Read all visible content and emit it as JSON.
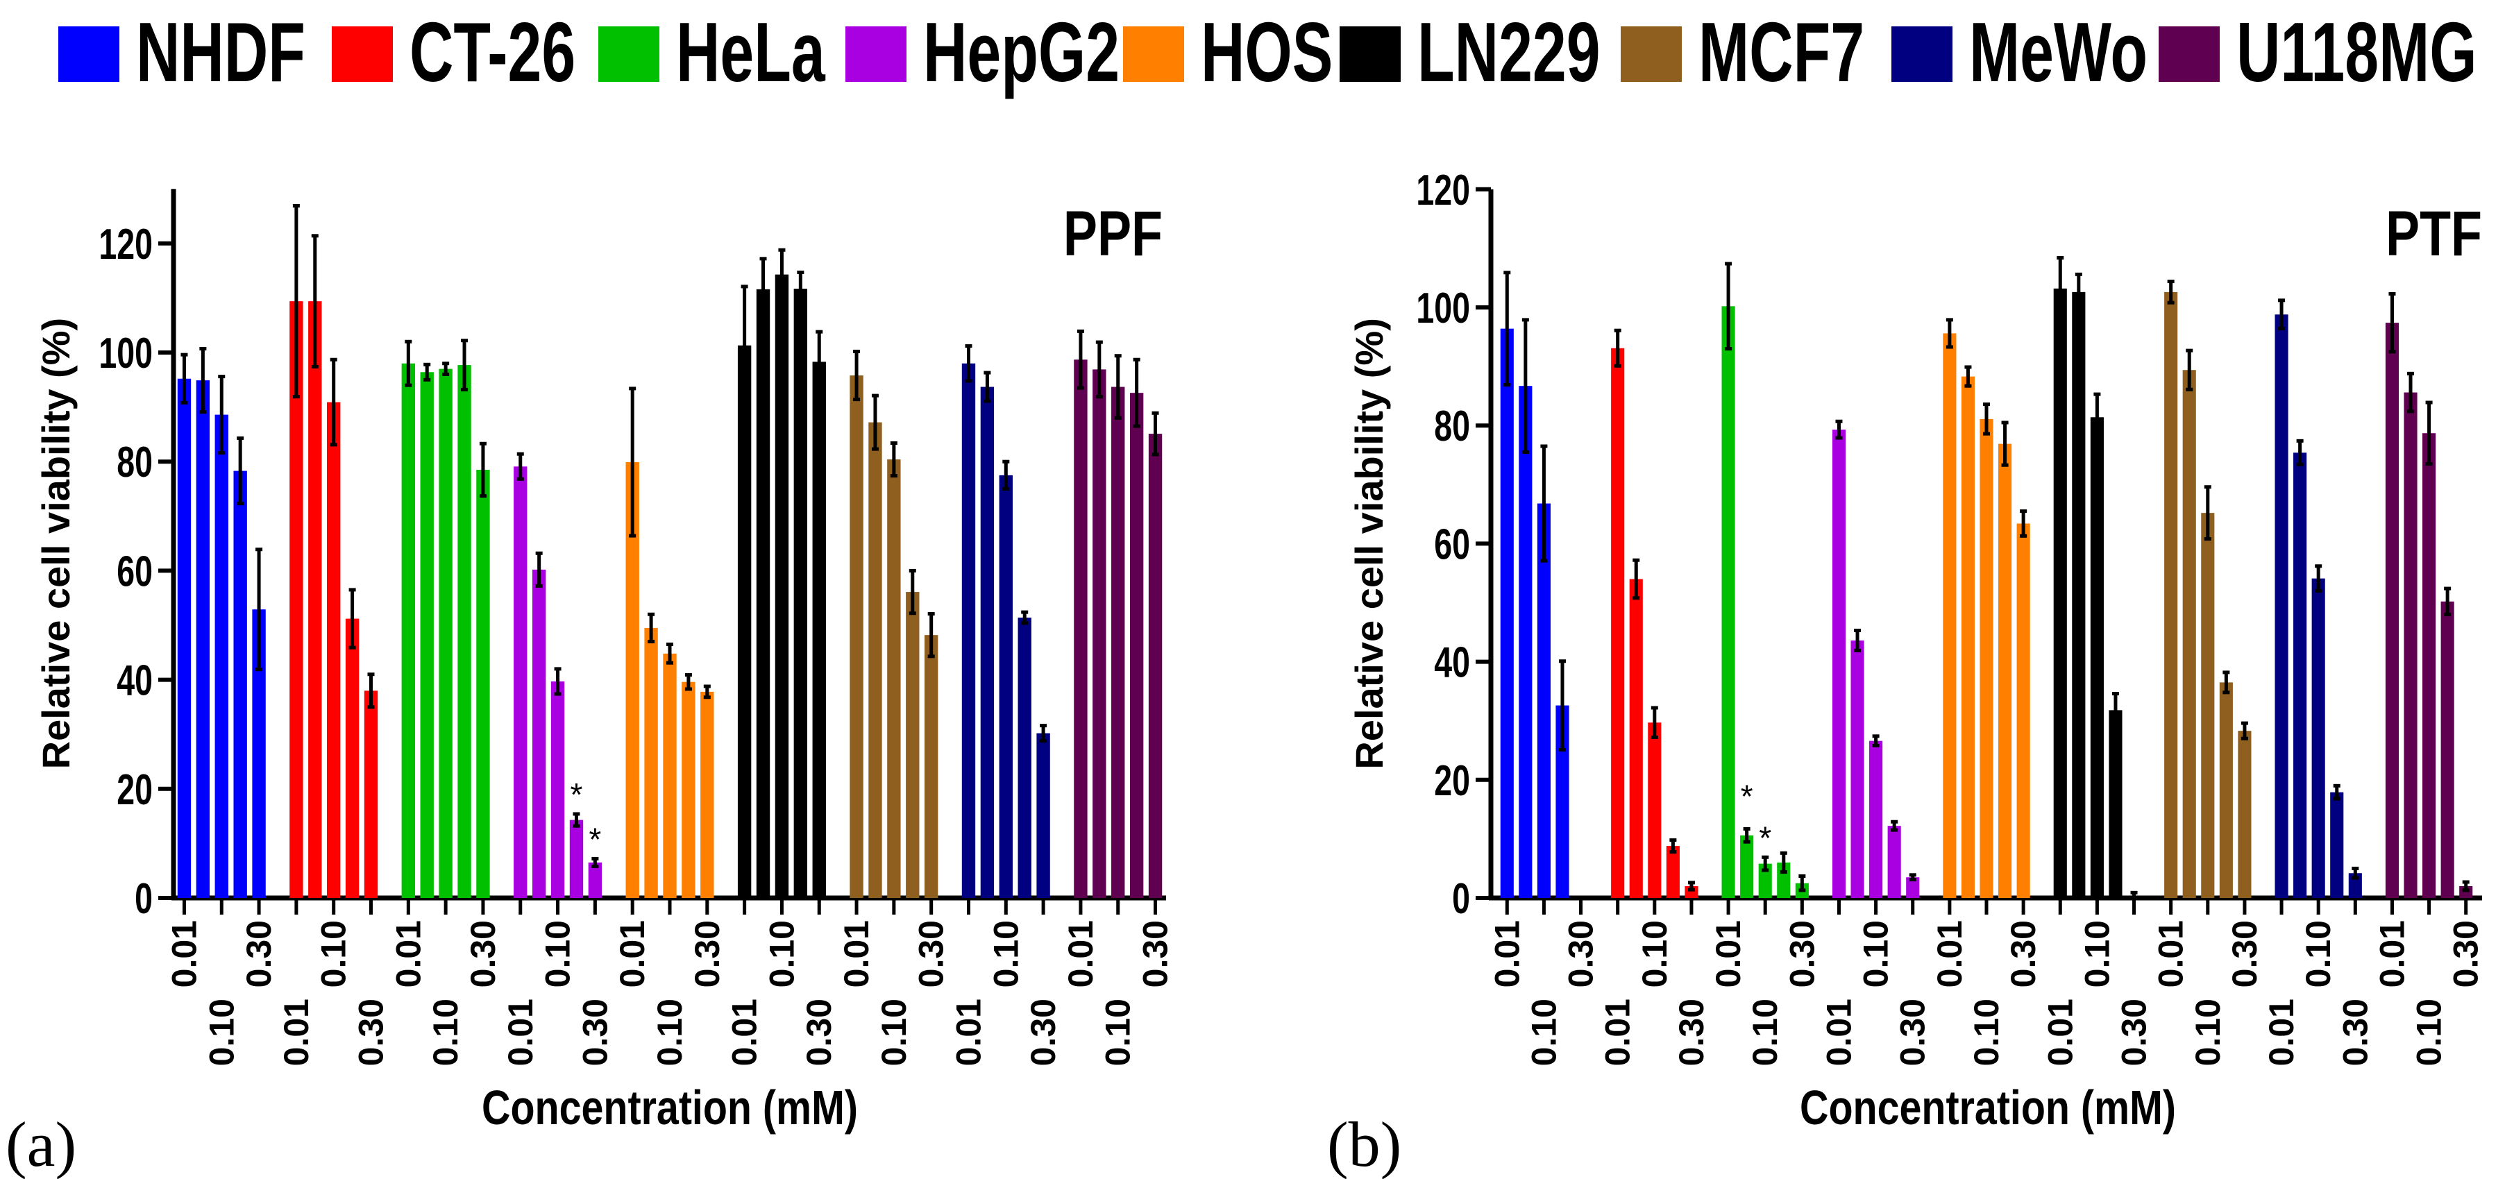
{
  "legend": [
    {
      "name": "NHDF",
      "color": "#0000ff"
    },
    {
      "name": "CT-26",
      "color": "#ff0000"
    },
    {
      "name": "HeLa",
      "color": "#00c000"
    },
    {
      "name": "HepG2",
      "color": "#a800e0"
    },
    {
      "name": "HOS",
      "color": "#ff8000"
    },
    {
      "name": "LN229",
      "color": "#000000"
    },
    {
      "name": "MCF7",
      "color": "#8f5f1f"
    },
    {
      "name": "MeWo",
      "color": "#000080"
    },
    {
      "name": "U118MG",
      "color": "#600050"
    }
  ],
  "panels": [
    {
      "label": "(a)"
    },
    {
      "label": "(b)"
    }
  ],
  "chart_data": [
    {
      "type": "bar",
      "title": "PPF",
      "xlabel": "Concentration (mM)",
      "ylabel": "Relative cell viability (%)",
      "ylim": [
        0,
        130
      ],
      "yticks": [
        0,
        20,
        40,
        60,
        80,
        100,
        120
      ],
      "bar_tick_labels": [
        "0.01",
        "",
        "0.10",
        "",
        "0.30"
      ],
      "asterisk_mark": "*",
      "series": [
        {
          "name": "NHDF",
          "values": [
            95.2,
            94.9,
            88.6,
            78.3,
            52.9
          ],
          "errors": [
            4.4,
            5.8,
            7.0,
            6.0,
            11.0
          ],
          "asterisks": []
        },
        {
          "name": "CT-26",
          "values": [
            109.4,
            109.4,
            90.9,
            51.2,
            38.0
          ],
          "errors": [
            17.5,
            12.0,
            7.8,
            5.3,
            3.0
          ],
          "asterisks": []
        },
        {
          "name": "HeLa",
          "values": [
            98.0,
            96.4,
            97.0,
            97.7,
            78.5
          ],
          "errors": [
            4.0,
            1.4,
            1.0,
            4.5,
            4.8
          ],
          "asterisks": []
        },
        {
          "name": "HepG2",
          "values": [
            79.1,
            60.2,
            39.7,
            14.3,
            6.5
          ],
          "errors": [
            2.3,
            3.0,
            2.3,
            1.1,
            0.7
          ],
          "asterisks": [
            3,
            4
          ]
        },
        {
          "name": "HOS",
          "values": [
            79.9,
            49.5,
            44.8,
            39.6,
            37.8
          ],
          "errors": [
            13.5,
            2.5,
            1.7,
            1.3,
            1.0
          ],
          "asterisks": []
        },
        {
          "name": "LN229",
          "values": [
            101.3,
            111.6,
            114.3,
            111.7,
            98.3
          ],
          "errors": [
            10.8,
            5.6,
            4.5,
            3.0,
            5.5
          ],
          "asterisks": []
        },
        {
          "name": "MCF7",
          "values": [
            95.8,
            87.2,
            80.4,
            56.1,
            48.2
          ],
          "errors": [
            4.4,
            4.9,
            3.0,
            3.9,
            3.9
          ],
          "asterisks": []
        },
        {
          "name": "MeWo",
          "values": [
            98.0,
            93.7,
            77.5,
            51.4,
            30.2
          ],
          "errors": [
            3.2,
            2.6,
            2.5,
            1.0,
            1.4
          ],
          "asterisks": []
        },
        {
          "name": "U118MG",
          "values": [
            98.7,
            96.9,
            93.7,
            92.6,
            85.1
          ],
          "errors": [
            5.2,
            5.0,
            5.7,
            6.1,
            3.8
          ],
          "asterisks": []
        }
      ]
    },
    {
      "type": "bar",
      "title": "PTF",
      "xlabel": "Concentration (mM)",
      "ylabel": "Relative cell viability (%)",
      "ylim": [
        0,
        120
      ],
      "yticks": [
        0,
        20,
        40,
        60,
        80,
        100,
        120
      ],
      "bar_tick_labels": [
        "0.01",
        "",
        "0.10",
        "",
        "0.30"
      ],
      "asterisk_mark": "*",
      "series": [
        {
          "name": "NHDF",
          "values": [
            96.4,
            86.7,
            66.8,
            32.6,
            0
          ],
          "errors": [
            9.5,
            11.2,
            9.7,
            7.5,
            0
          ],
          "asterisks": []
        },
        {
          "name": "CT-26",
          "values": [
            93.1,
            54.0,
            29.7,
            8.8,
            2.0
          ],
          "errors": [
            3.0,
            3.2,
            2.5,
            1.0,
            0.6
          ],
          "asterisks": []
        },
        {
          "name": "HeLa",
          "values": [
            100.2,
            10.6,
            5.8,
            6.0,
            2.5
          ],
          "errors": [
            7.2,
            1.1,
            1.1,
            1.6,
            1.2
          ],
          "asterisks": [
            1,
            2
          ]
        },
        {
          "name": "HepG2",
          "values": [
            79.3,
            43.6,
            26.6,
            12.2,
            3.5
          ],
          "errors": [
            1.4,
            1.7,
            0.8,
            0.7,
            0.4
          ],
          "asterisks": []
        },
        {
          "name": "HOS",
          "values": [
            95.6,
            88.3,
            81.1,
            76.9,
            63.4
          ],
          "errors": [
            2.3,
            1.6,
            2.5,
            3.6,
            2.1
          ],
          "asterisks": []
        },
        {
          "name": "LN229",
          "values": [
            103.2,
            102.6,
            81.4,
            31.8,
            0.2
          ],
          "errors": [
            5.2,
            3.0,
            3.9,
            2.8,
            0.7
          ],
          "asterisks": []
        },
        {
          "name": "MCF7",
          "values": [
            102.6,
            89.4,
            65.2,
            36.5,
            28.3
          ],
          "errors": [
            1.8,
            3.3,
            4.4,
            1.7,
            1.3
          ],
          "asterisks": []
        },
        {
          "name": "MeWo",
          "values": [
            98.8,
            75.4,
            54.1,
            17.9,
            4.2
          ],
          "errors": [
            2.4,
            2.0,
            2.1,
            1.1,
            0.8
          ],
          "asterisks": []
        },
        {
          "name": "U118MG",
          "values": [
            97.4,
            85.6,
            78.7,
            50.2,
            2.0
          ],
          "errors": [
            4.9,
            3.2,
            5.2,
            2.2,
            0.7
          ],
          "asterisks": []
        }
      ]
    }
  ]
}
